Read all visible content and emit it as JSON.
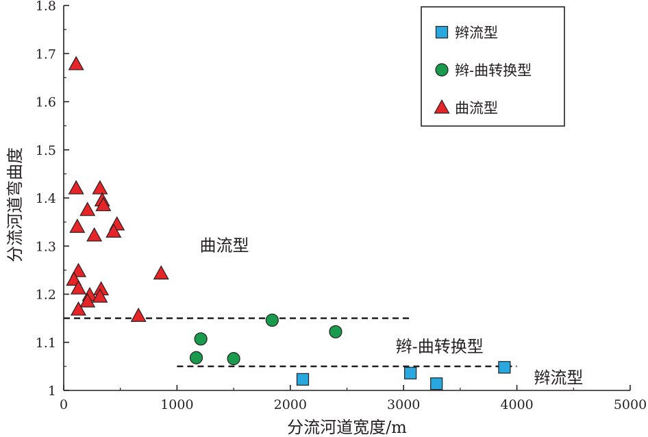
{
  "chart_data": {
    "type": "scatter",
    "xlabel": "分流河道宽度/m",
    "ylabel": "分流河道弯曲度",
    "xlim": [
      0,
      5000
    ],
    "ylim": [
      1.0,
      1.8
    ],
    "x_ticks": [
      0,
      1000,
      2000,
      3000,
      4000,
      5000
    ],
    "y_ticks": [
      1,
      1.1,
      1.2,
      1.3,
      1.4,
      1.5,
      1.6,
      1.7,
      1.8
    ],
    "x_tick_labels": [
      "0",
      "1000",
      "2000",
      "3000",
      "4000",
      "5000"
    ],
    "y_tick_labels": [
      "1",
      "1.1",
      "1.2",
      "1.3",
      "1.4",
      "1.5",
      "1.6",
      "1.7",
      "1.8"
    ],
    "grid": false,
    "legend_position": "top-right",
    "series": [
      {
        "name": "辫流型",
        "marker": "square",
        "color": "#29a8e0",
        "points": [
          {
            "x": 2110,
            "y": 1.023
          },
          {
            "x": 3060,
            "y": 1.036
          },
          {
            "x": 3290,
            "y": 1.014
          },
          {
            "x": 3890,
            "y": 1.048
          }
        ]
      },
      {
        "name": "辫-曲转换型",
        "marker": "circle",
        "color": "#1a9a4c",
        "points": [
          {
            "x": 1170,
            "y": 1.068
          },
          {
            "x": 1210,
            "y": 1.107
          },
          {
            "x": 1500,
            "y": 1.066
          },
          {
            "x": 1840,
            "y": 1.146
          },
          {
            "x": 2400,
            "y": 1.122
          }
        ]
      },
      {
        "name": "曲流型",
        "marker": "triangle",
        "color": "#e52528",
        "points": [
          {
            "x": 110,
            "y": 1.678
          },
          {
            "x": 110,
            "y": 1.42
          },
          {
            "x": 320,
            "y": 1.42
          },
          {
            "x": 340,
            "y": 1.395
          },
          {
            "x": 350,
            "y": 1.385
          },
          {
            "x": 210,
            "y": 1.375
          },
          {
            "x": 120,
            "y": 1.34
          },
          {
            "x": 470,
            "y": 1.345
          },
          {
            "x": 440,
            "y": 1.33
          },
          {
            "x": 270,
            "y": 1.322
          },
          {
            "x": 130,
            "y": 1.248
          },
          {
            "x": 90,
            "y": 1.23
          },
          {
            "x": 130,
            "y": 1.212
          },
          {
            "x": 330,
            "y": 1.21
          },
          {
            "x": 230,
            "y": 1.198
          },
          {
            "x": 320,
            "y": 1.195
          },
          {
            "x": 210,
            "y": 1.185
          },
          {
            "x": 130,
            "y": 1.168
          },
          {
            "x": 660,
            "y": 1.155
          },
          {
            "x": 860,
            "y": 1.243
          }
        ]
      }
    ],
    "threshold_lines": [
      {
        "y": 1.15,
        "x_range": [
          0,
          3060
        ],
        "style": "dashed"
      },
      {
        "y": 1.05,
        "x_range": [
          1000,
          4000
        ],
        "style": "dashed"
      }
    ],
    "annotations": [
      {
        "text": "曲流型",
        "x": 1200,
        "y": 1.29
      },
      {
        "text": "辫-曲转换型",
        "x": 2930,
        "y": 1.08
      },
      {
        "text": "辫流型",
        "x": 4150,
        "y": 1.015
      }
    ]
  }
}
